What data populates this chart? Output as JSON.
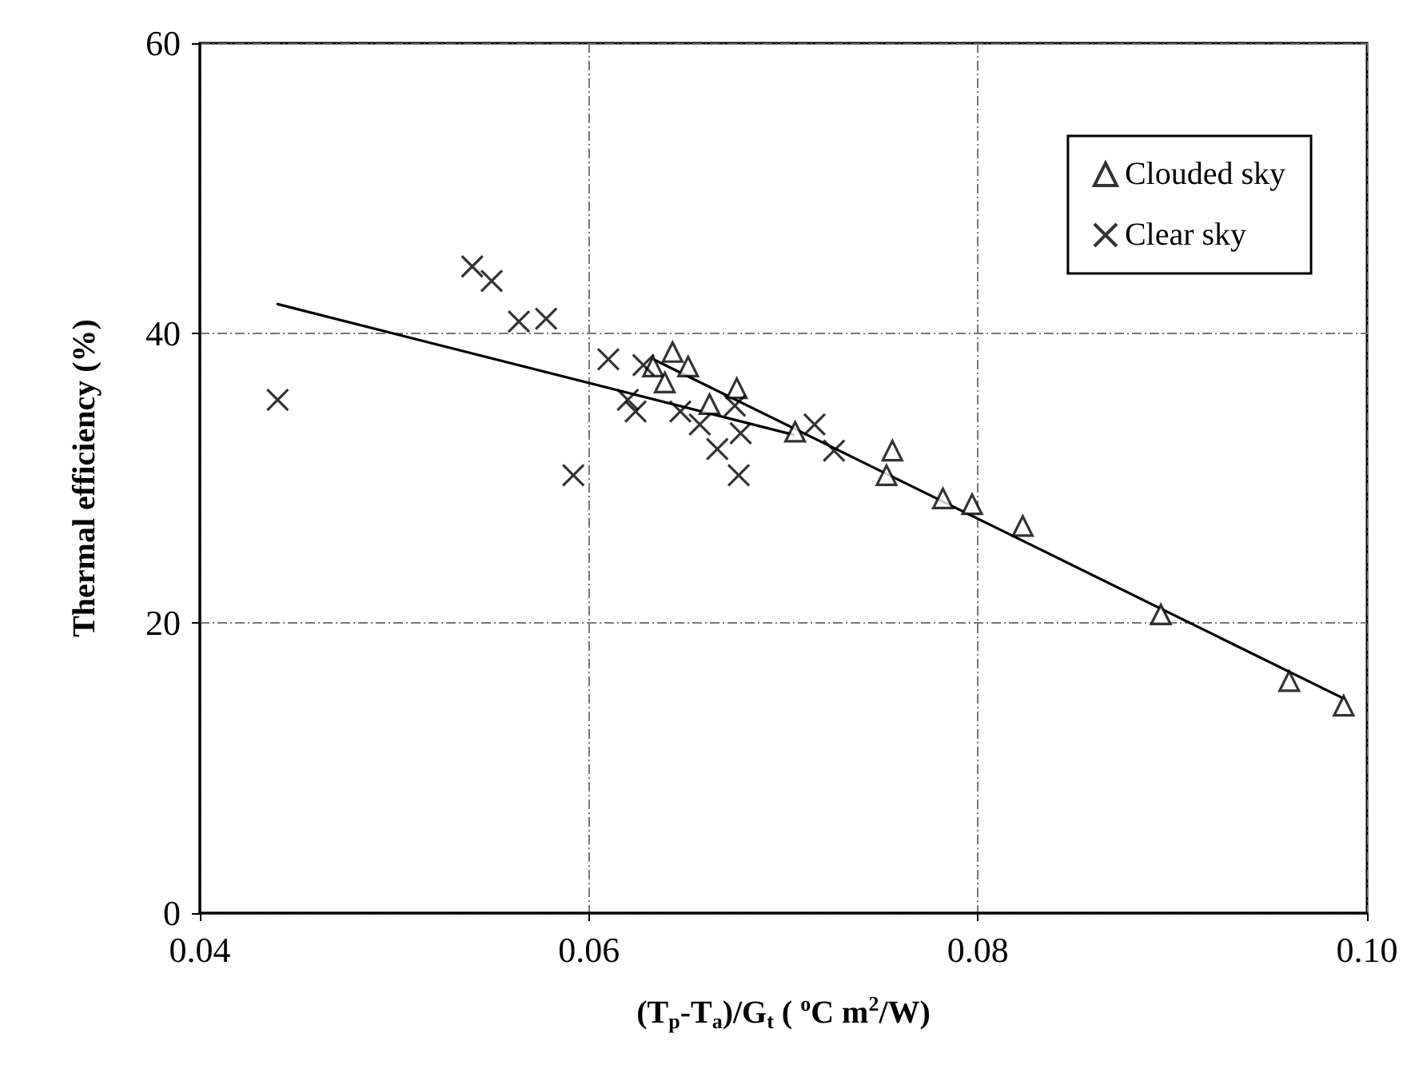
{
  "chart_data": {
    "type": "scatter",
    "xlabel": "(T$_{p}$-T$_{a}$)/G$_{t}$ ( $^{o}$C m$^{2}$/W)",
    "ylabel": "Thermal efficiency (%)",
    "xlim": [
      0.04,
      0.1
    ],
    "xticks": [
      0.04,
      0.06,
      0.08,
      {
        "value": 0.1,
        "label": "0.10"
      }
    ],
    "ylim": [
      0,
      60
    ],
    "yticks": [
      0,
      20,
      40,
      60
    ],
    "grid": true,
    "legend": "top right",
    "series": [
      {
        "name": "Clouded sky",
        "color": "#000000",
        "marker": "triangle",
        "x": [
          0.0633,
          0.0643,
          0.0639,
          0.0651,
          0.0662,
          0.0676,
          0.0706,
          0.0753,
          0.0756,
          0.0782,
          0.0797,
          0.0823,
          0.0894,
          0.096,
          0.0988
        ],
        "values": [
          37.7,
          38.7,
          36.6,
          37.7,
          35.1,
          36.2,
          33.2,
          30.2,
          31.9,
          28.6,
          28.2,
          26.7,
          20.6,
          16.0,
          14.3
        ]
      },
      {
        "name": "Clear sky",
        "color": "#000000",
        "marker": "cross",
        "x": [
          0.044,
          0.054,
          0.055,
          0.0564,
          0.0578,
          0.0592,
          0.061,
          0.062,
          0.0624,
          0.0628,
          0.0647,
          0.0657,
          0.0666,
          0.0675,
          0.0678,
          0.0677,
          0.0716,
          0.0726
        ],
        "values": [
          35.4,
          44.6,
          43.6,
          40.8,
          41.0,
          30.2,
          38.2,
          35.4,
          34.6,
          37.8,
          34.6,
          33.7,
          32.0,
          35.0,
          33.1,
          30.2,
          33.7,
          31.9
        ]
      },
      {
        "type": "line",
        "color": "#000000",
        "marker": "none",
        "x": [
          0.044,
          0.0705
        ],
        "values": [
          42.0,
          33.0
        ]
      },
      {
        "type": "line",
        "color": "#000000",
        "marker": "none",
        "x": [
          0.0633,
          0.0988
        ],
        "values": [
          38.2,
          14.8
        ]
      }
    ]
  }
}
